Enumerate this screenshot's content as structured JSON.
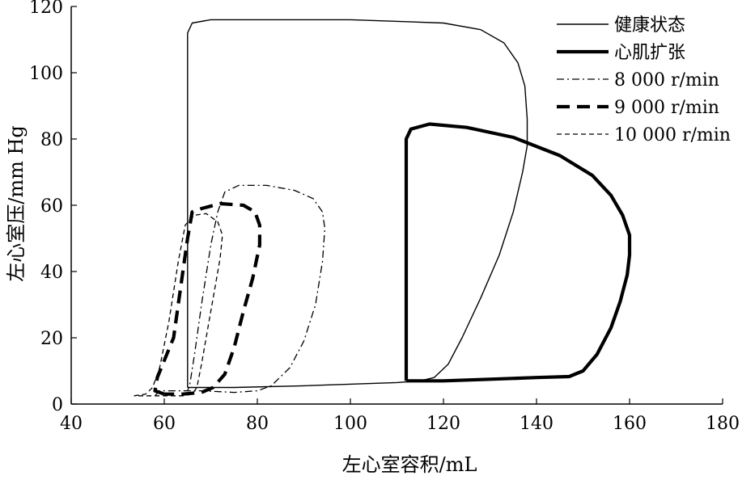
{
  "chart_data": {
    "type": "line",
    "title": "",
    "xlabel": "左心室容积/mL",
    "ylabel": "左心室压/mm Hg",
    "xlim": [
      40,
      180
    ],
    "ylim": [
      0,
      120
    ],
    "xticks": [
      40,
      60,
      80,
      100,
      120,
      140,
      160,
      180
    ],
    "yticks": [
      0,
      20,
      40,
      60,
      80,
      100,
      120
    ],
    "grid": false,
    "legend_position": "top-right",
    "series": [
      {
        "name": "健康状态",
        "style": "solid-thin",
        "points": [
          [
            65,
            5
          ],
          [
            65,
            112
          ],
          [
            66,
            115
          ],
          [
            70,
            116
          ],
          [
            100,
            116
          ],
          [
            120,
            115
          ],
          [
            128,
            113
          ],
          [
            133,
            109
          ],
          [
            136,
            103
          ],
          [
            137.5,
            96
          ],
          [
            138,
            86
          ],
          [
            138,
            78
          ],
          [
            137,
            70
          ],
          [
            135,
            58
          ],
          [
            132,
            45
          ],
          [
            128,
            32
          ],
          [
            124,
            20
          ],
          [
            121,
            12
          ],
          [
            118,
            8
          ],
          [
            115,
            7
          ],
          [
            110,
            6.5
          ],
          [
            90,
            5.5
          ],
          [
            75,
            5
          ],
          [
            67,
            5
          ],
          [
            65,
            5
          ]
        ]
      },
      {
        "name": "心肌扩张",
        "style": "solid-thick",
        "points": [
          [
            112,
            7
          ],
          [
            112,
            80
          ],
          [
            113,
            83
          ],
          [
            117,
            84.5
          ],
          [
            125,
            83.5
          ],
          [
            135,
            80.5
          ],
          [
            145,
            75
          ],
          [
            152,
            69
          ],
          [
            156,
            63
          ],
          [
            158.5,
            57
          ],
          [
            160,
            51
          ],
          [
            160,
            45
          ],
          [
            159.5,
            39
          ],
          [
            158,
            31
          ],
          [
            156,
            23
          ],
          [
            153,
            15
          ],
          [
            150,
            10
          ],
          [
            147,
            8.3
          ],
          [
            140,
            8
          ],
          [
            130,
            7.5
          ],
          [
            120,
            7
          ],
          [
            112,
            7
          ]
        ]
      },
      {
        "name": "8 000 r/min",
        "style": "dash-dot",
        "points": [
          [
            58,
            2.5
          ],
          [
            59,
            4
          ],
          [
            62,
            4
          ],
          [
            68,
            4
          ],
          [
            75,
            3.5
          ],
          [
            80,
            4
          ],
          [
            83,
            5.5
          ],
          [
            87,
            11
          ],
          [
            90,
            19
          ],
          [
            92.5,
            30
          ],
          [
            94,
            43
          ],
          [
            94.5,
            53
          ],
          [
            94,
            58
          ],
          [
            92,
            62
          ],
          [
            88,
            64.5
          ],
          [
            82,
            66
          ],
          [
            76,
            66
          ],
          [
            73,
            64
          ],
          [
            71.5,
            58
          ],
          [
            70,
            48
          ],
          [
            68,
            30
          ],
          [
            66.5,
            15
          ],
          [
            65.5,
            6
          ],
          [
            65,
            4
          ]
        ]
      },
      {
        "name": "9 000 r/min",
        "style": "dash-thick",
        "points": [
          [
            60,
            3
          ],
          [
            58,
            4
          ],
          [
            58.5,
            8
          ],
          [
            62,
            20
          ],
          [
            64,
            40
          ],
          [
            65,
            50
          ],
          [
            66,
            58
          ],
          [
            68,
            59
          ],
          [
            72,
            60.5
          ],
          [
            77,
            60
          ],
          [
            79.5,
            58
          ],
          [
            80.5,
            54
          ],
          [
            80.5,
            48
          ],
          [
            79,
            38
          ],
          [
            77,
            28
          ],
          [
            75,
            17
          ],
          [
            73,
            9
          ],
          [
            70.5,
            5
          ],
          [
            68,
            3.5
          ],
          [
            64,
            3
          ],
          [
            60,
            3
          ]
        ]
      },
      {
        "name": "10 000 r/min",
        "style": "dash-thin",
        "points": [
          [
            53.5,
            2.5
          ],
          [
            56,
            3
          ],
          [
            57.5,
            5
          ],
          [
            59,
            11
          ],
          [
            61,
            25
          ],
          [
            63,
            43
          ],
          [
            64.5,
            54
          ],
          [
            66.5,
            57
          ],
          [
            69,
            57.5
          ],
          [
            71.5,
            55
          ],
          [
            72.5,
            51
          ],
          [
            72,
            44
          ],
          [
            71,
            36
          ],
          [
            69.5,
            24
          ],
          [
            68,
            12
          ],
          [
            67,
            5
          ],
          [
            66,
            3
          ],
          [
            64,
            2.5
          ],
          [
            60,
            2.5
          ],
          [
            53.5,
            2.5
          ]
        ]
      }
    ]
  }
}
